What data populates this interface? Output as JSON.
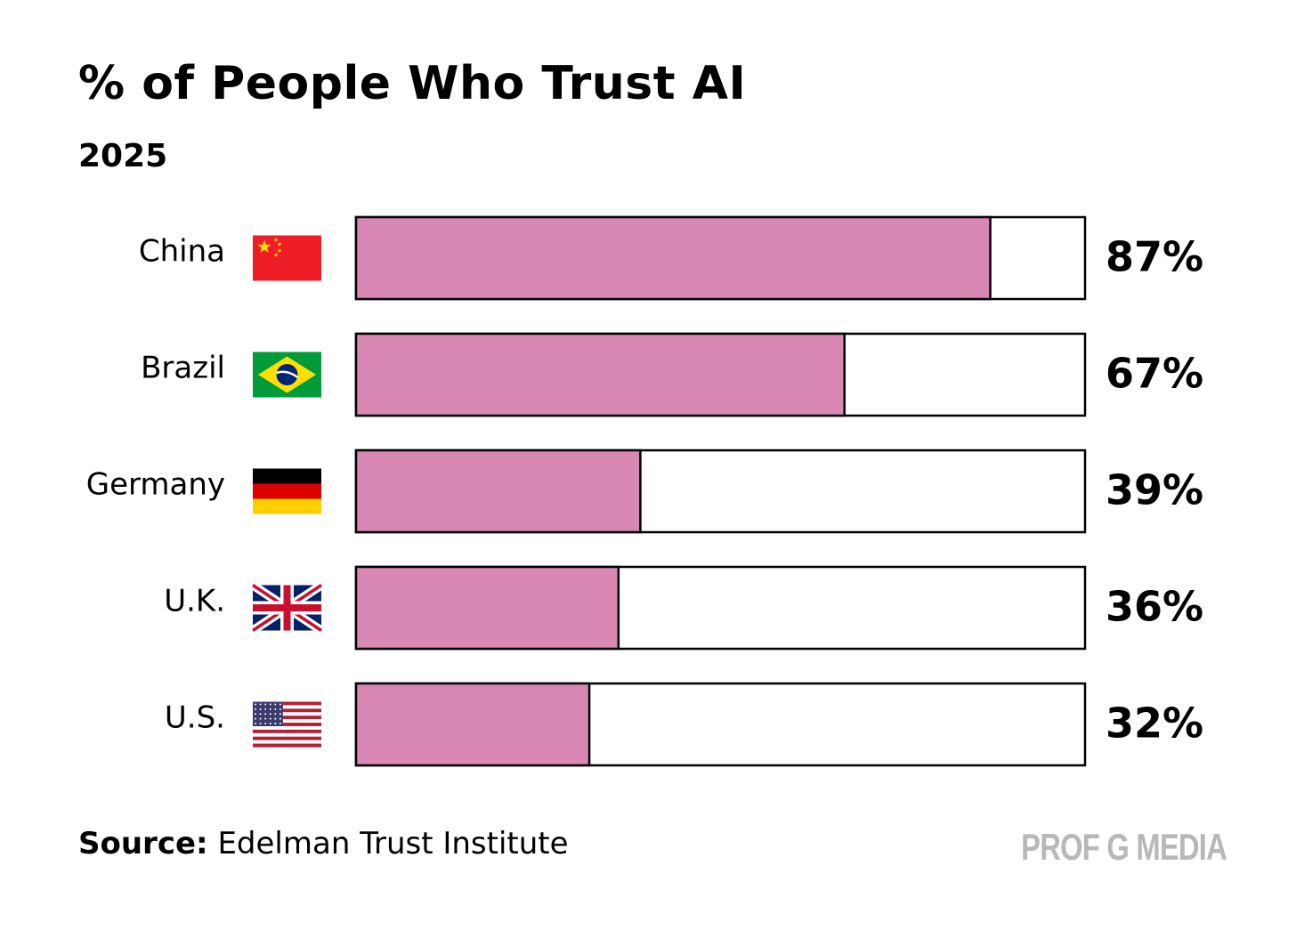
{
  "chart_data": {
    "type": "bar",
    "orientation": "horizontal",
    "title": "% of People Who Trust AI",
    "subtitle": "2025",
    "categories": [
      "China",
      "Brazil",
      "Germany",
      "U.K.",
      "U.S."
    ],
    "flags": [
      "china-flag-icon",
      "brazil-flag-icon",
      "germany-flag-icon",
      "uk-flag-icon",
      "us-flag-icon"
    ],
    "values": [
      87,
      67,
      39,
      36,
      32
    ],
    "value_labels": [
      "87%",
      "67%",
      "39%",
      "36%",
      "32%"
    ],
    "xlim": [
      0,
      100
    ],
    "bar_color": "#d988b4",
    "track_color": "#ffffff",
    "outline_color": "#000000",
    "grid": false
  },
  "footer": {
    "source_label": "Source:",
    "source_text": "Edelman Trust Institute",
    "brand": "PROF G MEDIA"
  }
}
